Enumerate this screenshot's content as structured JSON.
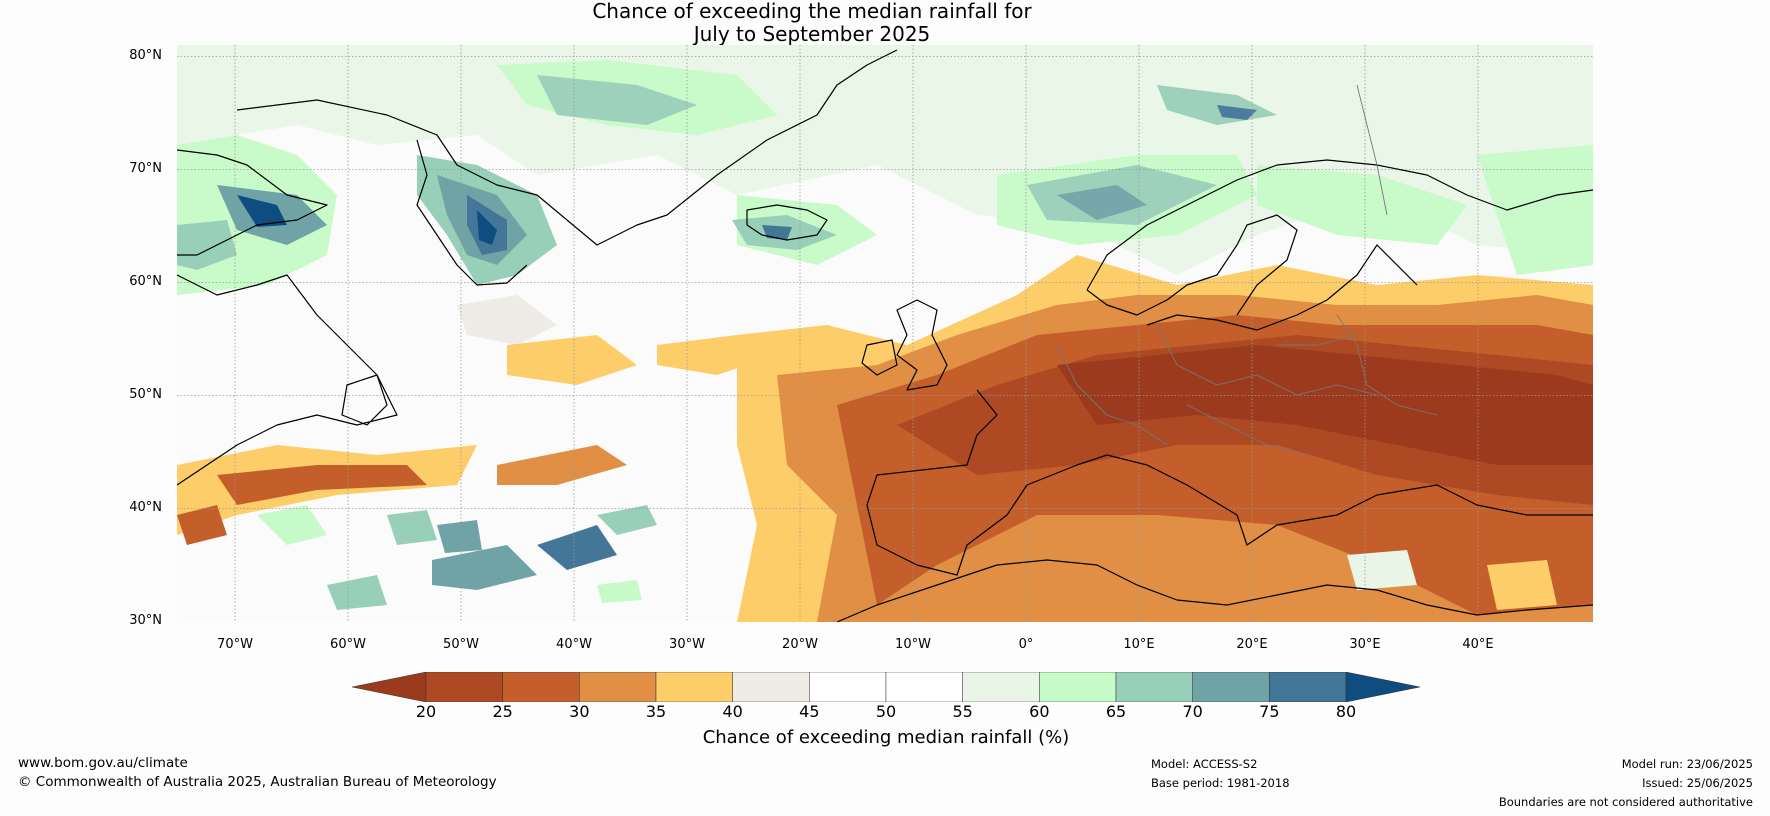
{
  "title": {
    "line1": "Chance of exceeding the median rainfall for",
    "line2": "July to September 2025"
  },
  "map": {
    "lat_labels": [
      "80°N",
      "70°N",
      "60°N",
      "50°N",
      "40°N",
      "30°N"
    ],
    "lon_labels": [
      "70°W",
      "60°W",
      "50°W",
      "40°W",
      "30°W",
      "20°W",
      "10°W",
      "0°",
      "10°E",
      "20°E",
      "30°E",
      "40°E"
    ]
  },
  "colorbar": {
    "ticks": [
      "20",
      "25",
      "30",
      "35",
      "40",
      "45",
      "50",
      "55",
      "60",
      "65",
      "70",
      "75",
      "80"
    ],
    "colors": [
      "#ad4a24",
      "#c45e2a",
      "#e08f45",
      "#fdcd6a",
      "#efebe6",
      "#ffffff",
      "#ffffff",
      "#e9f6e7",
      "#c6fac8",
      "#98cfb8",
      "#6fa3a6",
      "#437697"
    ],
    "low_color": "#9c3a1e",
    "high_color": "#0f4c80",
    "label": "Chance of exceeding median rainfall (%)"
  },
  "footer": {
    "website": "www.bom.gov.au/climate",
    "copyright": "© Commonwealth of Australia 2025, Australian Bureau of Meteorology",
    "model": "Model: ACCESS-S2",
    "base_period": "Base period: 1981-2018",
    "model_run": "Model run: 23/06/2025",
    "issued": "Issued: 25/06/2025",
    "disclaimer": "Boundaries are not considered authoritative"
  }
}
